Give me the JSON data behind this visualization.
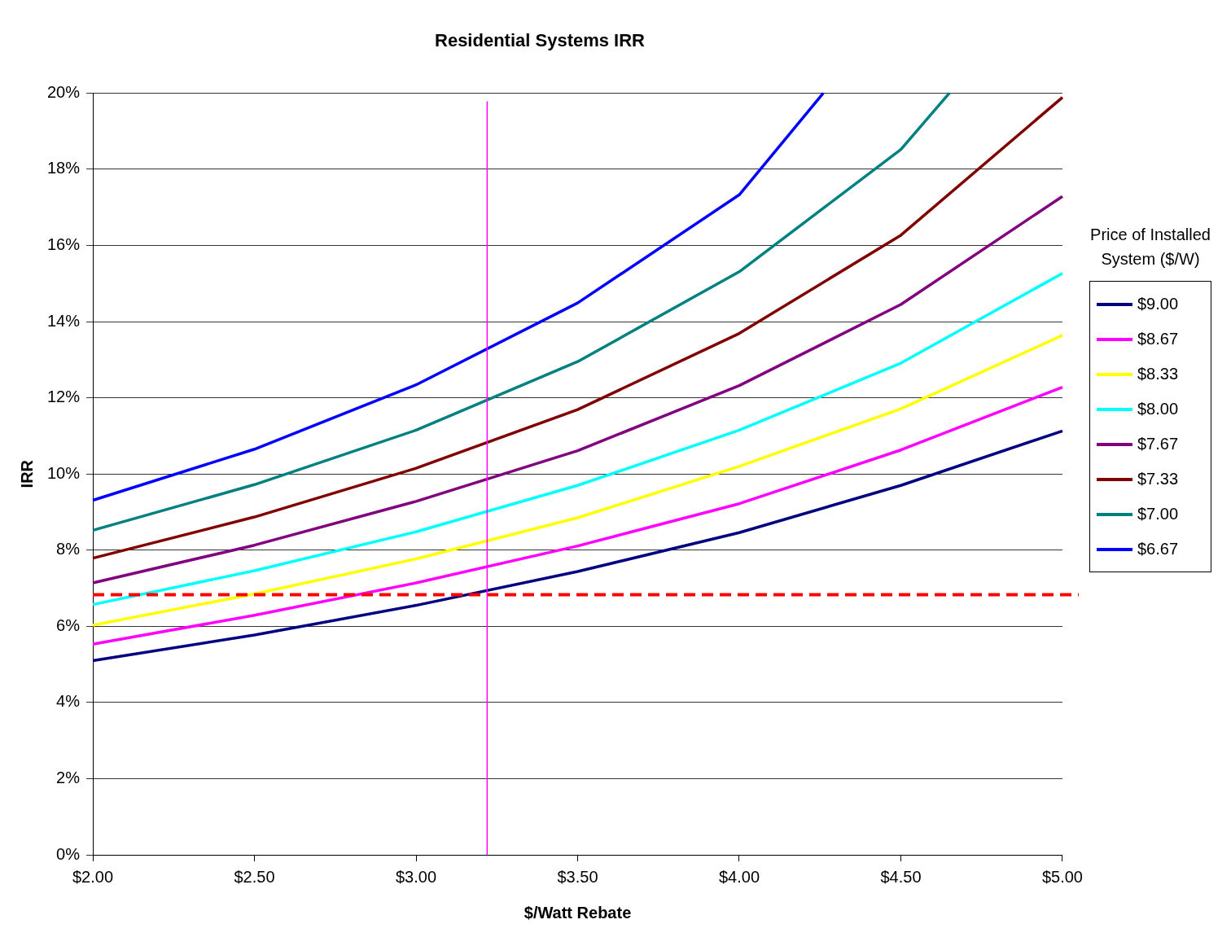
{
  "chart_data": {
    "type": "line",
    "title": "Residential Systems IRR",
    "xlabel": "$/Watt Rebate",
    "ylabel": "IRR",
    "legend_title": "Price of Installed System ($/W)",
    "x": [
      2.0,
      2.5,
      3.0,
      3.5,
      4.0,
      4.5,
      5.0
    ],
    "series": [
      {
        "name": "$9.00",
        "color": "#000080",
        "values": [
          5.1,
          5.77,
          6.55,
          7.44,
          8.46,
          9.7,
          11.13
        ]
      },
      {
        "name": "$8.67",
        "color": "#ff00ff",
        "values": [
          5.53,
          6.29,
          7.14,
          8.11,
          9.22,
          10.63,
          12.28
        ]
      },
      {
        "name": "$8.33",
        "color": "#ffff00",
        "values": [
          6.03,
          6.85,
          7.77,
          8.85,
          10.2,
          11.71,
          13.64
        ]
      },
      {
        "name": "$8.00",
        "color": "#00ffff",
        "values": [
          6.57,
          7.46,
          8.48,
          9.7,
          11.15,
          12.91,
          15.27
        ]
      },
      {
        "name": "$7.67",
        "color": "#800080",
        "values": [
          7.14,
          8.13,
          9.28,
          10.61,
          12.32,
          14.45,
          17.29
        ]
      },
      {
        "name": "$7.33",
        "color": "#800000",
        "values": [
          7.79,
          8.87,
          10.15,
          11.69,
          13.69,
          16.27,
          19.89
        ]
      },
      {
        "name": "$7.00",
        "color": "#008080",
        "x": [
          2.0,
          2.5,
          3.0,
          3.5,
          4.0,
          4.5,
          4.65
        ],
        "values": [
          8.52,
          9.72,
          11.15,
          12.95,
          15.31,
          18.52,
          20.0
        ]
      },
      {
        "name": "$6.67",
        "color": "#0000ff",
        "x": [
          2.0,
          2.5,
          3.0,
          3.5,
          4.0,
          4.26
        ],
        "values": [
          9.31,
          10.65,
          12.34,
          14.49,
          17.33,
          20.0
        ]
      }
    ],
    "xlim": [
      2.0,
      5.0
    ],
    "xticks": [
      {
        "value": 2.0,
        "label": "$2.00"
      },
      {
        "value": 2.5,
        "label": "$2.50"
      },
      {
        "value": 3.0,
        "label": "$3.00"
      },
      {
        "value": 3.5,
        "label": "$3.50"
      },
      {
        "value": 4.0,
        "label": "$4.00"
      },
      {
        "value": 4.5,
        "label": "$4.50"
      },
      {
        "value": 5.0,
        "label": "$5.00"
      }
    ],
    "ylim": [
      0,
      20
    ],
    "yticks": [
      {
        "value": 0,
        "label": "0%"
      },
      {
        "value": 2,
        "label": "2%"
      },
      {
        "value": 4,
        "label": "4%"
      },
      {
        "value": 6,
        "label": "6%"
      },
      {
        "value": 8,
        "label": "8%"
      },
      {
        "value": 10,
        "label": "10%"
      },
      {
        "value": 12,
        "label": "12%"
      },
      {
        "value": 14,
        "label": "14%"
      },
      {
        "value": 16,
        "label": "16%"
      },
      {
        "value": 18,
        "label": "18%"
      },
      {
        "value": 20,
        "label": "20%"
      }
    ],
    "ref_lines": [
      {
        "axis": "y",
        "value": 6.83,
        "color": "#ff0000",
        "line_style": "dashed"
      },
      {
        "axis": "x",
        "value": 3.22,
        "color": "#ff00ff",
        "line_style": "solid"
      }
    ],
    "grid": "y",
    "legend": "right",
    "marker": "none",
    "line_style": "solid"
  }
}
